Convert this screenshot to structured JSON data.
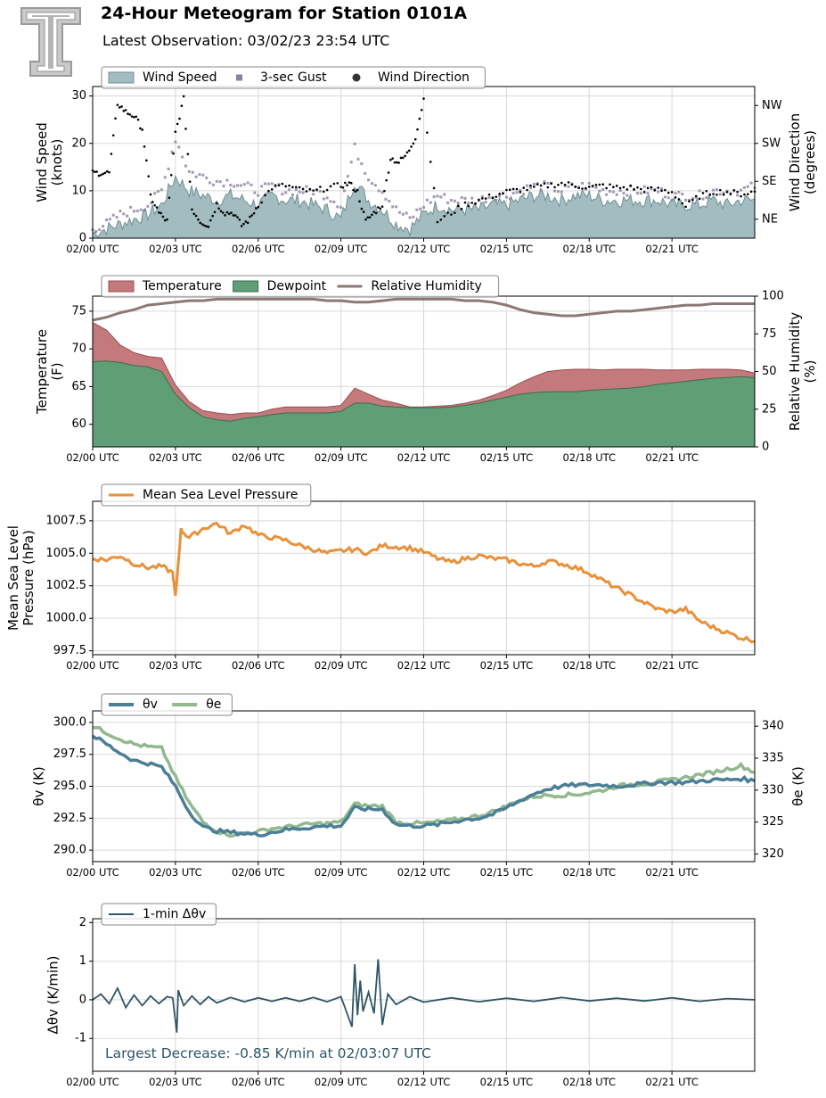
{
  "header": {
    "title": "24-Hour Meteogram for Station 0101A",
    "subtitle": "Latest Observation: 03/02/23 23:54 UTC",
    "logo_icon": "double-t-logo-icon"
  },
  "colors": {
    "wind_fill": "#a3bcc0",
    "wind_line": "#6f8f94",
    "gust": "#8c7fa0",
    "direction": "#000000",
    "temperature": "#c47a7c",
    "dewpoint": "#5f9e76",
    "dewpoint_line": "#3d6b4c",
    "temperature_line": "#9a4d50",
    "humidity": "#8e7777",
    "pressure": "#e8913a",
    "theta_v": "#4a7f96",
    "theta_e": "#92b88e",
    "dtheta": "#2f5566",
    "annotation": "#2f5566",
    "grid": "#d9d9d9"
  },
  "chart_data": [
    {
      "type": "area",
      "panel": "wind",
      "ylabel": "Wind Speed\n(knots)",
      "y2label": "Wind Direction\n(degrees)",
      "ylim": [
        0,
        32
      ],
      "yticks": [
        0,
        10,
        20,
        30
      ],
      "y2lim": [
        0,
        360
      ],
      "y2ticks": [
        {
          "value": 45,
          "label": "NE"
        },
        {
          "value": 135,
          "label": "SE"
        },
        {
          "value": 225,
          "label": "SW"
        },
        {
          "value": 315,
          "label": "NW"
        }
      ],
      "xticks": [
        "02/00 UTC",
        "02/03 UTC",
        "02/06 UTC",
        "02/09 UTC",
        "02/12 UTC",
        "02/15 UTC",
        "02/18 UTC",
        "02/21 UTC"
      ],
      "legend": [
        "Wind Speed",
        "3-sec Gust",
        "Wind Direction"
      ],
      "legend_position": "upper-left",
      "grid": true,
      "series": [
        {
          "name": "Wind Speed",
          "x_hours": [
            0,
            0.5,
            1,
            1.5,
            2,
            2.5,
            3,
            3.5,
            4,
            4.5,
            5,
            5.5,
            6,
            6.5,
            7,
            7.5,
            8,
            8.5,
            9,
            9.5,
            10,
            10.5,
            11,
            11.5,
            12,
            12.5,
            13,
            13.5,
            14,
            14.5,
            15,
            15.5,
            16,
            16.5,
            17,
            17.5,
            18,
            18.5,
            19,
            19.5,
            20,
            20.5,
            21,
            21.5,
            22,
            22.5,
            23,
            23.5,
            24
          ],
          "values": [
            1,
            2,
            3,
            4,
            5,
            7,
            13,
            10,
            9,
            8,
            9,
            8,
            7,
            9,
            8,
            8,
            7,
            6,
            4,
            12,
            8,
            6,
            3,
            2,
            5,
            7,
            6,
            6,
            6,
            7,
            7,
            8,
            9,
            9,
            8,
            9,
            9,
            8,
            8,
            8,
            8,
            8,
            7,
            7,
            7,
            8,
            7,
            8,
            8
          ]
        },
        {
          "name": "3-sec Gust",
          "x_hours": [
            0,
            0.5,
            1,
            1.5,
            2,
            2.5,
            3,
            3.5,
            4,
            4.5,
            5,
            5.5,
            6,
            6.5,
            7,
            7.5,
            8,
            8.5,
            9,
            9.5,
            10,
            10.5,
            11,
            11.5,
            12,
            12.5,
            13,
            13.5,
            14,
            14.5,
            15,
            15.5,
            16,
            16.5,
            17,
            17.5,
            18,
            18.5,
            19,
            19.5,
            20,
            20.5,
            21,
            21.5,
            22,
            22.5,
            23,
            23.5,
            24
          ],
          "values": [
            2,
            3,
            5,
            6,
            7,
            10,
            21,
            14,
            13,
            12,
            12,
            11,
            10,
            11,
            10,
            10,
            10,
            9,
            7,
            19,
            13,
            10,
            6,
            4,
            7,
            9,
            8,
            8,
            8,
            9,
            9,
            10,
            11,
            11,
            10,
            11,
            11,
            10,
            10,
            10,
            10,
            10,
            9,
            9,
            9,
            10,
            10,
            10,
            11
          ]
        },
        {
          "name": "Wind Direction",
          "x_hours": [
            0,
            0.3,
            0.6,
            0.9,
            1.2,
            1.5,
            1.8,
            2.1,
            2.4,
            2.7,
            3,
            3.3,
            3.6,
            3.9,
            4.2,
            4.5,
            4.8,
            5.1,
            5.4,
            5.7,
            6,
            6.5,
            7,
            7.5,
            8,
            8.5,
            9,
            9.3,
            9.6,
            9.9,
            10.2,
            10.5,
            10.8,
            11.1,
            11.4,
            11.7,
            12,
            12.5,
            13,
            13.5,
            14,
            14.5,
            15,
            15.5,
            16,
            16.5,
            17,
            17.5,
            18,
            18.5,
            19,
            19.5,
            20,
            20.5,
            21,
            21.5,
            22,
            22.5,
            23,
            23.5,
            24
          ],
          "values": [
            155,
            155,
            155,
            320,
            300,
            290,
            260,
            100,
            60,
            40,
            250,
            330,
            70,
            40,
            30,
            80,
            60,
            60,
            30,
            45,
            80,
            120,
            125,
            115,
            110,
            120,
            125,
            130,
            110,
            40,
            60,
            80,
            190,
            180,
            200,
            240,
            330,
            40,
            60,
            80,
            90,
            100,
            110,
            115,
            120,
            125,
            130,
            125,
            120,
            125,
            120,
            120,
            115,
            115,
            110,
            75,
            100,
            110,
            110,
            105,
            110
          ]
        }
      ]
    },
    {
      "type": "area",
      "panel": "temperature",
      "ylabel": "Temperature\n(F)",
      "y2label": "Relative Humidity\n(%)",
      "ylim": [
        57,
        77
      ],
      "yticks": [
        60,
        65,
        70,
        75
      ],
      "y2lim": [
        0,
        100
      ],
      "y2ticks": [
        0,
        25,
        50,
        75,
        100
      ],
      "xticks": [
        "02/00 UTC",
        "02/03 UTC",
        "02/06 UTC",
        "02/09 UTC",
        "02/12 UTC",
        "02/15 UTC",
        "02/18 UTC",
        "02/21 UTC"
      ],
      "legend": [
        "Temperature",
        "Dewpoint",
        "Relative Humidity"
      ],
      "legend_position": "upper-left",
      "grid": true,
      "x_hours": [
        0,
        0.5,
        1,
        1.5,
        2,
        2.5,
        3,
        3.5,
        4,
        4.5,
        5,
        5.5,
        6,
        6.5,
        7,
        7.5,
        8,
        8.5,
        9,
        9.5,
        10,
        10.5,
        11,
        11.5,
        12,
        12.5,
        13,
        13.5,
        14,
        14.5,
        15,
        15.5,
        16,
        16.5,
        17,
        17.5,
        18,
        18.5,
        19,
        19.5,
        20,
        20.5,
        21,
        21.5,
        22,
        22.5,
        23,
        23.5,
        24
      ],
      "series": [
        {
          "name": "Temperature",
          "values": [
            73.5,
            72.5,
            70.5,
            69.5,
            69.0,
            68.8,
            65.2,
            63.0,
            61.8,
            61.5,
            61.3,
            61.5,
            61.5,
            62.0,
            62.3,
            62.3,
            62.3,
            62.3,
            62.5,
            64.8,
            64.0,
            63.2,
            62.8,
            62.3,
            62.3,
            62.4,
            62.5,
            62.8,
            63.2,
            63.8,
            64.5,
            65.5,
            66.3,
            67.0,
            67.2,
            67.3,
            67.3,
            67.2,
            67.3,
            67.3,
            67.3,
            67.2,
            67.2,
            67.2,
            67.3,
            67.3,
            67.3,
            67.2,
            66.8
          ]
        },
        {
          "name": "Dewpoint",
          "values": [
            68.3,
            68.4,
            68.2,
            67.8,
            67.6,
            67.0,
            64.0,
            62.2,
            61.0,
            60.6,
            60.4,
            60.8,
            61.0,
            61.3,
            61.5,
            61.5,
            61.5,
            61.5,
            61.7,
            62.8,
            62.8,
            62.4,
            62.3,
            62.2,
            62.2,
            62.2,
            62.3,
            62.5,
            62.8,
            63.2,
            63.6,
            64.0,
            64.2,
            64.3,
            64.3,
            64.3,
            64.5,
            64.6,
            64.7,
            64.8,
            65.0,
            65.3,
            65.5,
            65.7,
            65.9,
            66.1,
            66.2,
            66.3,
            66.2
          ]
        },
        {
          "name": "Relative Humidity",
          "values": [
            84,
            86,
            89,
            91,
            94,
            95,
            96,
            97,
            97,
            98,
            98,
            98,
            98,
            98,
            98,
            98,
            98,
            97,
            97,
            96,
            96,
            97,
            98,
            98,
            98,
            98,
            98,
            97,
            97,
            96,
            94,
            91,
            89,
            88,
            87,
            87,
            88,
            89,
            90,
            90,
            91,
            92,
            93,
            94,
            94,
            95,
            95,
            95,
            95
          ]
        }
      ]
    },
    {
      "type": "line",
      "panel": "pressure",
      "ylabel": "Mean Sea Level\nPressure (hPa)",
      "ylim": [
        997.2,
        1009.0
      ],
      "yticks": [
        997.5,
        1000.0,
        1002.5,
        1005.0,
        1007.5
      ],
      "xticks": [
        "02/00 UTC",
        "02/03 UTC",
        "02/06 UTC",
        "02/09 UTC",
        "02/12 UTC",
        "02/15 UTC",
        "02/18 UTC",
        "02/21 UTC"
      ],
      "legend": [
        "Mean Sea Level Pressure"
      ],
      "legend_position": "upper-left",
      "grid": true,
      "x_hours": [
        0,
        0.5,
        1,
        1.5,
        2,
        2.5,
        2.9,
        3.0,
        3.2,
        3.5,
        4,
        4.5,
        5,
        5.5,
        6,
        6.5,
        7,
        7.5,
        8,
        8.5,
        9,
        9.5,
        10,
        10.5,
        11,
        11.5,
        12,
        12.5,
        13,
        13.5,
        14,
        14.5,
        15,
        15.5,
        16,
        16.5,
        17,
        17.5,
        18,
        18.5,
        19,
        19.5,
        20,
        20.5,
        21,
        21.5,
        22,
        22.5,
        23,
        23.5,
        24
      ],
      "series": [
        {
          "name": "Mean Sea Level Pressure",
          "values": [
            1004.6,
            1004.5,
            1004.8,
            1004.2,
            1003.9,
            1004.0,
            1003.5,
            1001.6,
            1006.8,
            1006.2,
            1006.9,
            1007.3,
            1006.5,
            1007.2,
            1006.4,
            1006.2,
            1006.0,
            1005.6,
            1005.3,
            1005.0,
            1005.2,
            1005.3,
            1005.0,
            1005.6,
            1005.5,
            1005.4,
            1005.1,
            1004.6,
            1004.3,
            1004.6,
            1004.8,
            1004.6,
            1004.5,
            1004.2,
            1004.0,
            1004.4,
            1004.2,
            1003.9,
            1003.5,
            1002.9,
            1002.3,
            1001.8,
            1001.2,
            1000.7,
            1000.5,
            1000.7,
            999.8,
            999.3,
            998.9,
            998.5,
            998.3
          ]
        }
      ]
    },
    {
      "type": "line",
      "panel": "theta",
      "ylabel": "θv (K)",
      "y2label": "θe (K)",
      "ylim": [
        289.1,
        300.9
      ],
      "yticks": [
        290.0,
        292.5,
        295.0,
        297.5,
        300.0
      ],
      "y2lim": [
        318.8,
        342.4
      ],
      "y2ticks": [
        320,
        325,
        330,
        335,
        340
      ],
      "xticks": [
        "02/00 UTC",
        "02/03 UTC",
        "02/06 UTC",
        "02/09 UTC",
        "02/12 UTC",
        "02/15 UTC",
        "02/18 UTC",
        "02/21 UTC"
      ],
      "legend": [
        "θv",
        "θe"
      ],
      "legend_position": "upper-left",
      "grid": true,
      "x_hours": [
        0,
        0.5,
        1,
        1.5,
        2,
        2.5,
        3,
        3.5,
        4,
        4.5,
        5,
        5.5,
        6,
        6.5,
        7,
        7.5,
        8,
        8.5,
        9,
        9.5,
        10,
        10.5,
        11,
        11.5,
        12,
        12.5,
        13,
        13.5,
        14,
        14.5,
        15,
        15.5,
        16,
        16.5,
        17,
        17.5,
        18,
        18.5,
        19,
        19.5,
        20,
        20.5,
        21,
        21.5,
        22,
        22.5,
        23,
        23.5,
        24
      ],
      "series": [
        {
          "name": "θv",
          "axis": "left",
          "values": [
            299.0,
            298.3,
            297.6,
            297.0,
            296.8,
            296.5,
            295.0,
            293.0,
            291.8,
            291.5,
            291.4,
            291.3,
            291.2,
            291.4,
            291.6,
            291.7,
            291.8,
            291.9,
            291.9,
            293.3,
            293.2,
            293.2,
            292.0,
            291.9,
            291.9,
            292.0,
            292.2,
            292.4,
            292.5,
            292.8,
            293.3,
            293.9,
            294.4,
            294.8,
            295.0,
            295.1,
            295.1,
            295.1,
            295.0,
            295.1,
            295.2,
            295.3,
            295.3,
            295.3,
            295.4,
            295.5,
            295.5,
            295.6,
            295.4
          ]
        },
        {
          "name": "θe",
          "axis": "right",
          "values": [
            340.0,
            339.0,
            338.0,
            337.2,
            336.8,
            336.5,
            332.0,
            328.0,
            325.0,
            323.6,
            323.0,
            323.3,
            323.5,
            324.0,
            324.2,
            324.5,
            324.7,
            324.8,
            325.0,
            327.8,
            327.5,
            327.5,
            325.0,
            324.8,
            324.8,
            325.0,
            325.3,
            325.6,
            326.0,
            326.6,
            327.5,
            328.4,
            329.0,
            329.2,
            329.2,
            329.3,
            329.6,
            330.0,
            330.6,
            330.9,
            331.0,
            331.3,
            331.6,
            332.0,
            332.4,
            332.8,
            333.3,
            333.8,
            332.8
          ]
        }
      ]
    },
    {
      "type": "line",
      "panel": "dtheta",
      "ylabel": "Δθv (K/min)",
      "ylim": [
        -1.85,
        2.1
      ],
      "yticks": [
        -1,
        0,
        1,
        2
      ],
      "xticks": [
        "02/00 UTC",
        "02/03 UTC",
        "02/06 UTC",
        "02/09 UTC",
        "02/12 UTC",
        "02/15 UTC",
        "02/18 UTC",
        "02/21 UTC"
      ],
      "legend": [
        "1-min Δθv"
      ],
      "legend_position": "upper-left",
      "grid": true,
      "annotation": "Largest Decrease: -0.85 K/min at 02/03:07 UTC",
      "x_hours": [
        0,
        0.3,
        0.6,
        0.9,
        1.2,
        1.5,
        1.8,
        2.1,
        2.4,
        2.7,
        2.9,
        3.05,
        3.1,
        3.3,
        3.6,
        3.9,
        4.2,
        4.5,
        5,
        5.5,
        6,
        6.5,
        7,
        7.5,
        8,
        8.5,
        9,
        9.4,
        9.5,
        9.6,
        9.7,
        9.8,
        10.0,
        10.2,
        10.35,
        10.5,
        10.7,
        11,
        11.5,
        12,
        13,
        14,
        15,
        16,
        17,
        18,
        19,
        20,
        21,
        22,
        23,
        24
      ],
      "series": [
        {
          "name": "1-min Δθv",
          "values": [
            0.0,
            0.15,
            -0.1,
            0.3,
            -0.2,
            0.12,
            -0.15,
            0.1,
            -0.1,
            0.08,
            0.05,
            -0.85,
            0.25,
            -0.15,
            0.1,
            -0.12,
            0.08,
            -0.08,
            0.06,
            -0.05,
            0.05,
            -0.04,
            0.05,
            -0.04,
            0.06,
            -0.05,
            0.08,
            -0.7,
            0.92,
            -0.4,
            0.5,
            -0.3,
            0.2,
            -0.35,
            1.05,
            -0.65,
            0.15,
            -0.12,
            0.08,
            -0.06,
            0.05,
            -0.05,
            0.04,
            -0.04,
            0.06,
            -0.03,
            0.04,
            -0.03,
            0.05,
            -0.04,
            0.03,
            0.0
          ]
        }
      ]
    }
  ]
}
